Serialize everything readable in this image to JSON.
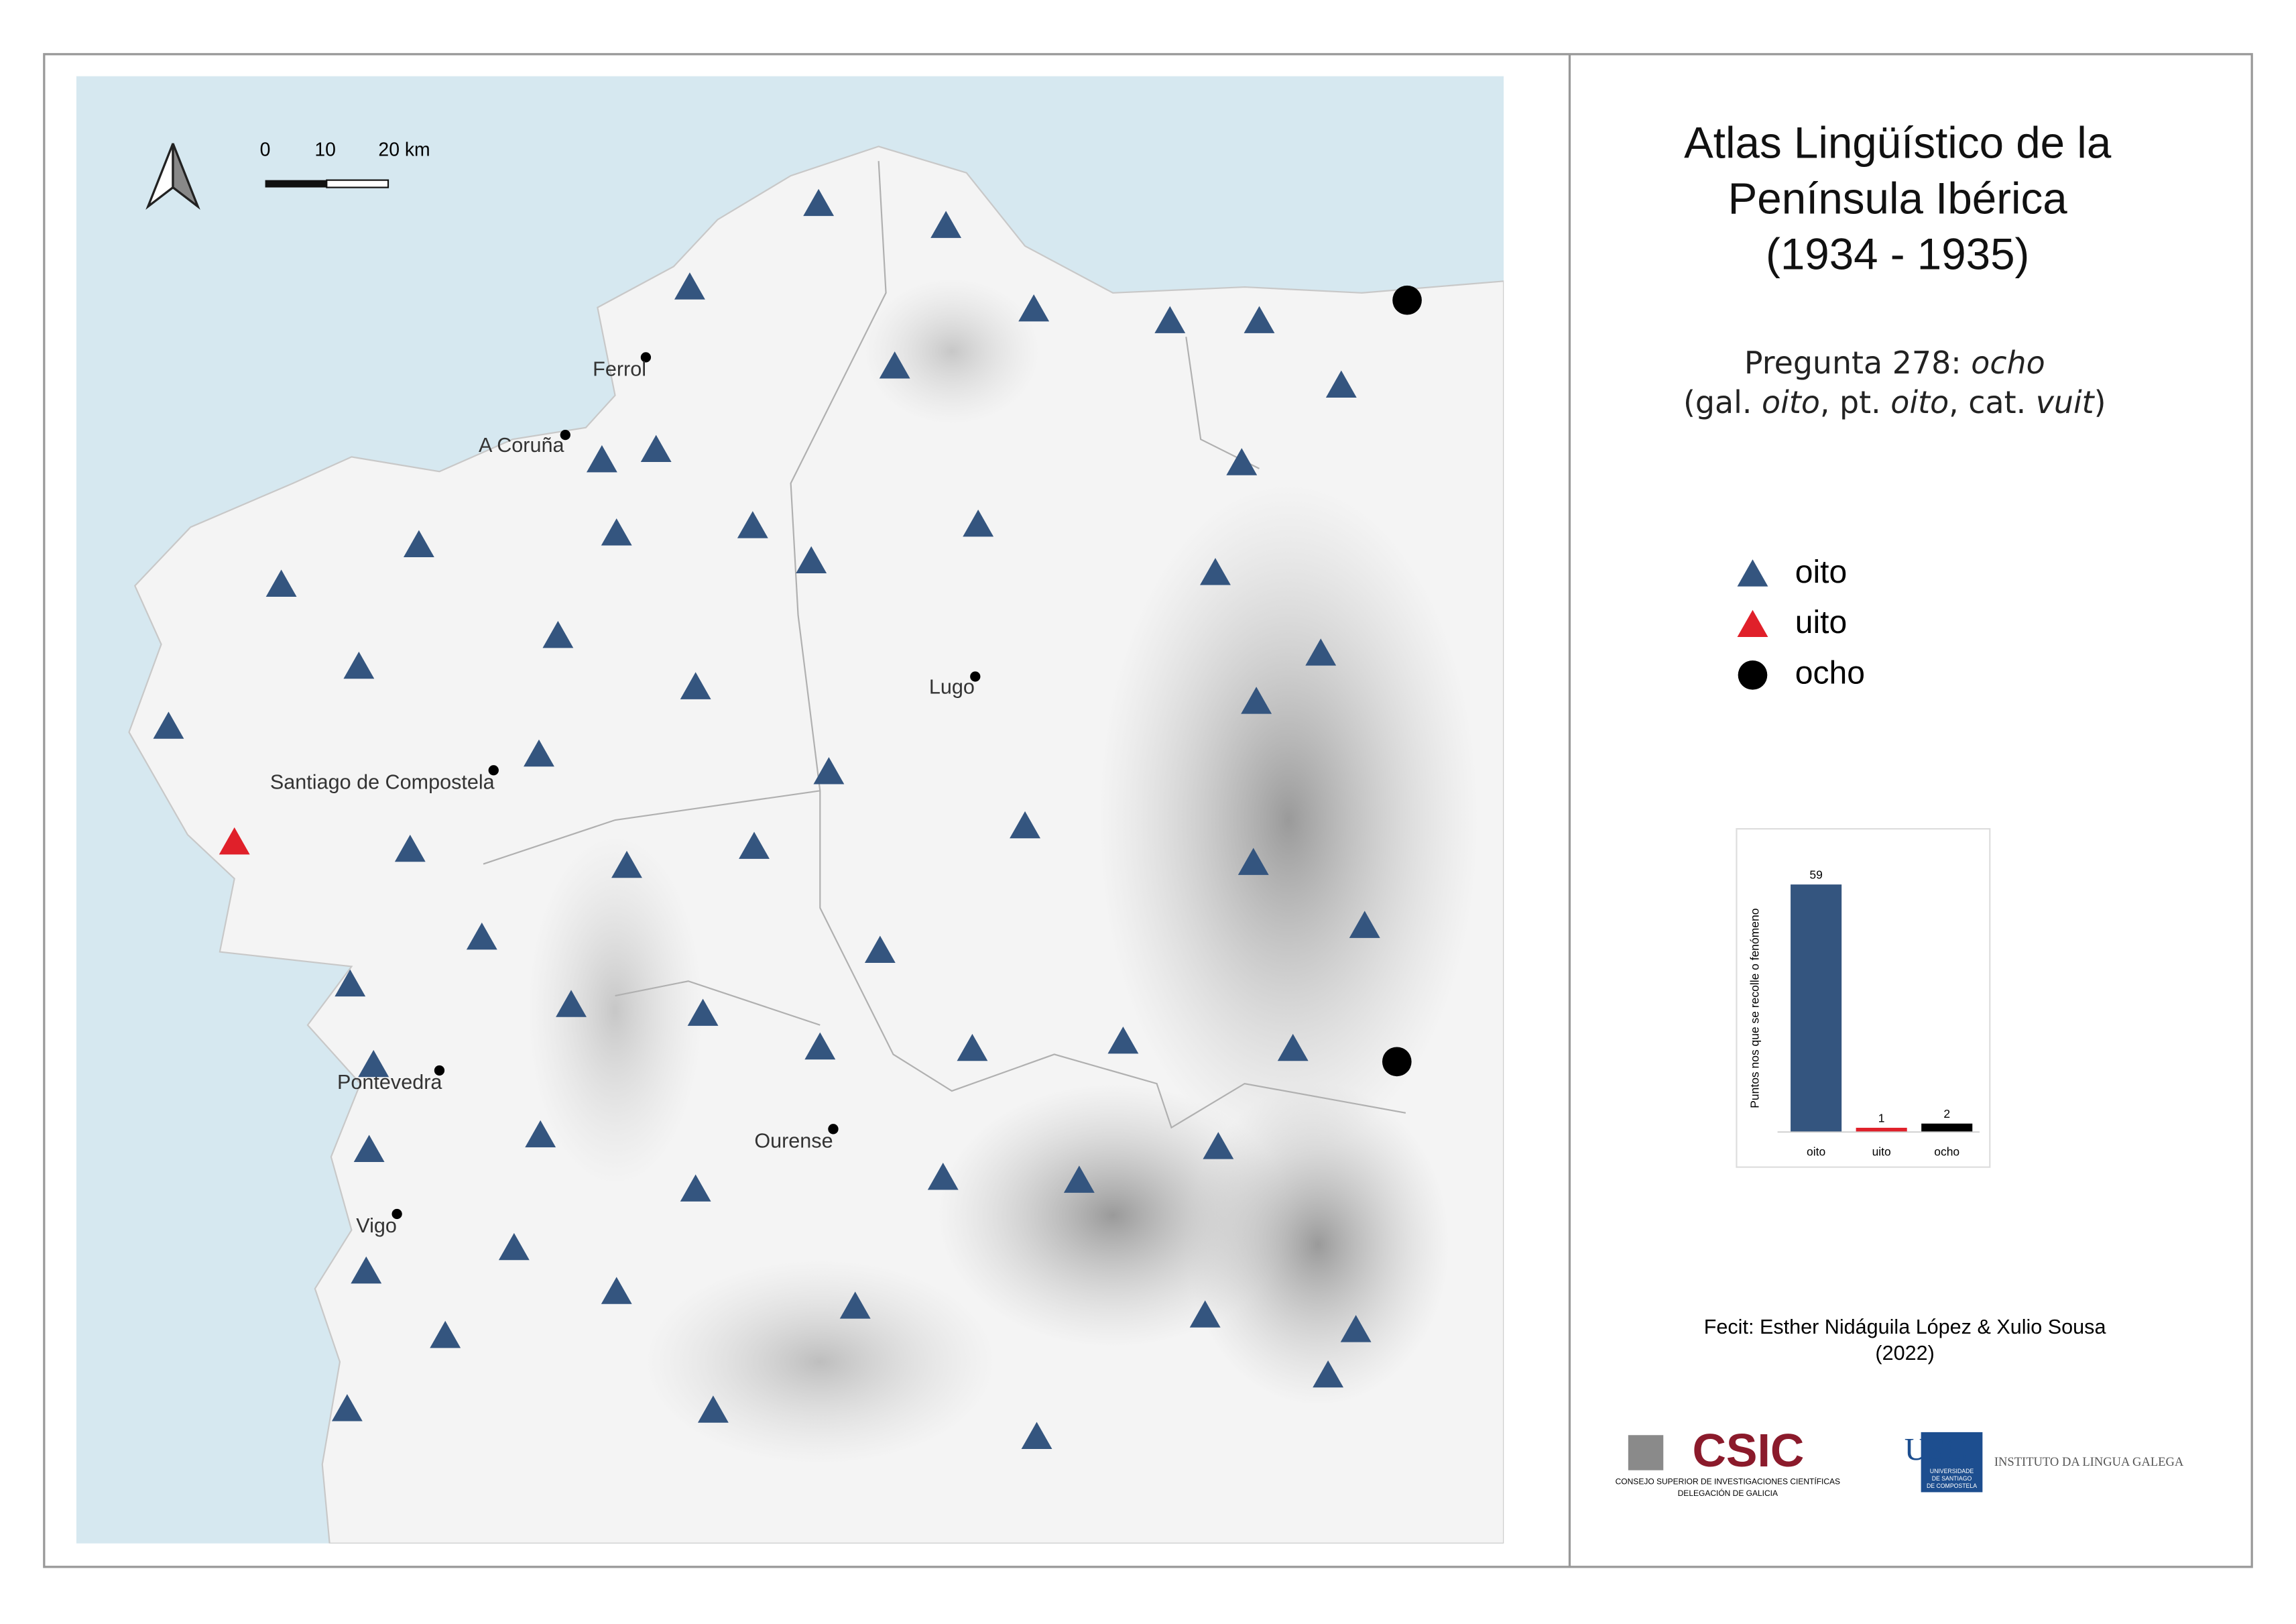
{
  "map": {
    "scale_labels": [
      "0",
      "10",
      "20 km"
    ],
    "cities": [
      "Ferrol",
      "A Coruña",
      "Santiago de Compostela",
      "Lugo",
      "Pontevedra",
      "Ourense",
      "Vigo"
    ],
    "legend": [
      {
        "name": "oito",
        "color": "#34557f",
        "shape": "triangle"
      },
      {
        "name": "uito",
        "color": "#e0202a",
        "shape": "triangle"
      },
      {
        "name": "ocho",
        "color": "#000000",
        "shape": "circle"
      }
    ]
  },
  "panel": {
    "title": [
      "Atlas Lingüístico de la",
      "Península Ibérica",
      "(1934 - 1935)"
    ],
    "question": [
      {
        "parts": [
          "Pregunta 278: ",
          "ocho"
        ],
        "italic": [
          false,
          true
        ]
      },
      {
        "parts": [
          "(gal. ",
          "oito",
          ", pt. ",
          "oito",
          ", cat. ",
          "vuit",
          ")"
        ],
        "italic": [
          false,
          true,
          false,
          true,
          false,
          true,
          false
        ]
      }
    ],
    "credit": [
      "Fecit: Esther Nidáguila López & Xulio Sousa",
      "(2022)"
    ],
    "logos": {
      "csic": "CSIC",
      "csic_lines": [
        "CONSEJO SUPERIOR DE INVESTIGACIONES CIENTÍFICAS",
        "DELEGACIÓN DE GALICIA"
      ],
      "usc": "USC",
      "usc_lines": [
        "UNIVERSIDADE",
        "DE SANTIAGO",
        "DE COMPOSTELA"
      ],
      "institute": "INSTITUTO DA LINGUA GALEGA"
    }
  },
  "chart_data": {
    "type": "bar",
    "y_label": "Puntos nos que se recolle o fenómeno",
    "categories": [
      "oito",
      "uito",
      "ocho"
    ],
    "values": [
      59,
      1,
      2
    ],
    "colors": [
      "#34557f",
      "#e0202a",
      "#000000"
    ],
    "ylim": [
      0,
      59
    ]
  }
}
